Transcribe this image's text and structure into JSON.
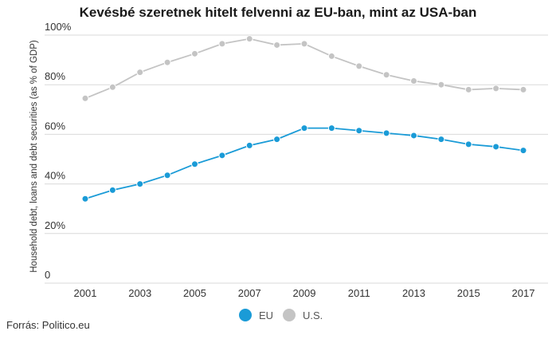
{
  "title": "Kevésbé szeretnek hitelt felvenni az EU-ban, mint az USA-ban",
  "source": "Forrás: Politico.eu",
  "colors": {
    "EU": "#1a9bd7",
    "U.S.": "#c4c4c4",
    "grid": "#d9d9d9"
  },
  "chart_data": {
    "type": "line",
    "title": "Kevésbé szeretnek hitelt felvenni az EU-ban, mint az USA-ban",
    "xlabel": "",
    "ylabel": "Household debt, loans and debt securities (as % of GDP)",
    "x": [
      2001,
      2002,
      2003,
      2004,
      2005,
      2006,
      2007,
      2008,
      2009,
      2010,
      2011,
      2012,
      2013,
      2014,
      2015,
      2016,
      2017
    ],
    "x_tick_labels": [
      "2001",
      "2003",
      "2005",
      "2007",
      "2009",
      "2011",
      "2013",
      "2015",
      "2017"
    ],
    "x_tick_values": [
      2001,
      2003,
      2005,
      2007,
      2009,
      2011,
      2013,
      2015,
      2017
    ],
    "y_tick_labels": [
      "0",
      "20%",
      "40%",
      "60%",
      "80%",
      "100%"
    ],
    "y_tick_values": [
      0,
      20,
      40,
      60,
      80,
      100
    ],
    "ylim": [
      0,
      100
    ],
    "grid": true,
    "legend_position": "bottom-center",
    "series": [
      {
        "name": "EU",
        "values": [
          34,
          37.5,
          40,
          43.5,
          48,
          51.5,
          55.5,
          58,
          62.5,
          62.5,
          61.5,
          60.5,
          59.5,
          58,
          56,
          55,
          53.5
        ]
      },
      {
        "name": "U.S.",
        "values": [
          74.5,
          79,
          85,
          89,
          92.5,
          96.5,
          98.5,
          96,
          96.5,
          91.5,
          87.5,
          84,
          81.5,
          80,
          78,
          78.5,
          78
        ]
      }
    ]
  }
}
